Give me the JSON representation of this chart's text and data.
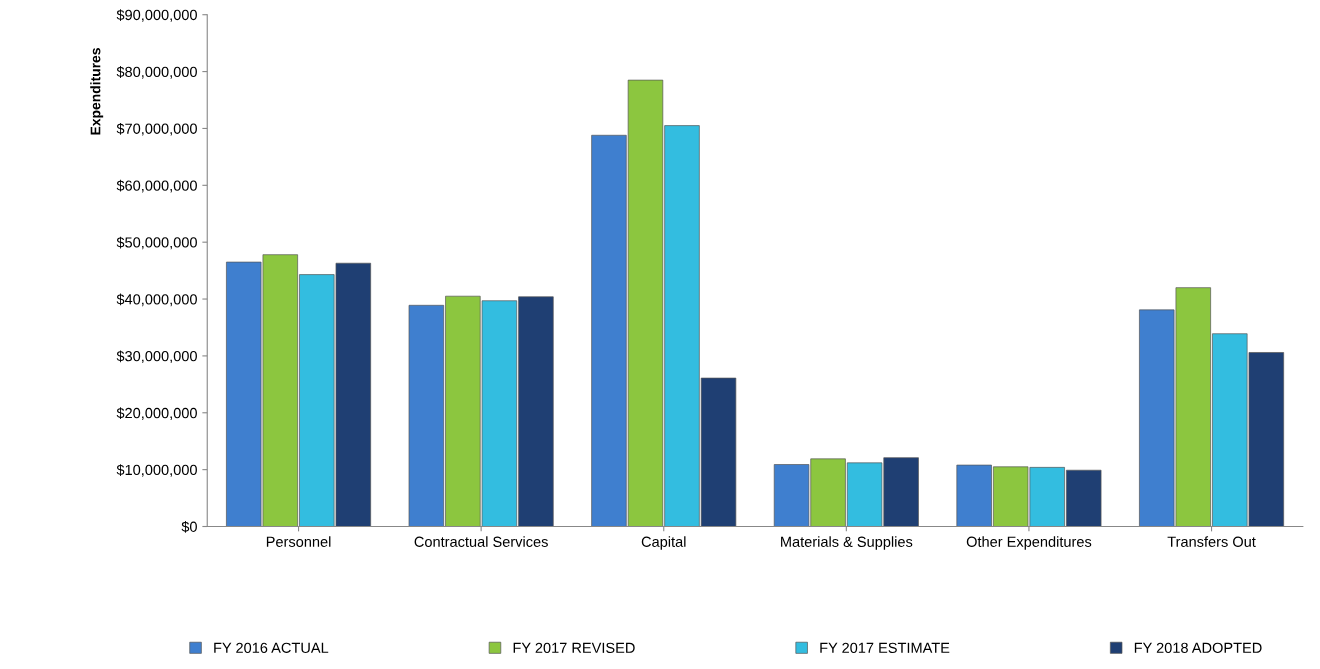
{
  "chart_data": {
    "type": "bar",
    "ylabel": "Expenditures",
    "categories": [
      "Personnel",
      "Contractual Services",
      "Capital",
      "Materials & Supplies",
      "Other Expenditures",
      "Transfers Out"
    ],
    "series": [
      {
        "name": "FY 2016 ACTUAL",
        "color": "#3f7fcf",
        "values": [
          46500000,
          38900000,
          68800000,
          10900000,
          10800000,
          38100000
        ]
      },
      {
        "name": "FY 2017 REVISED",
        "color": "#8cc63f",
        "values": [
          47800000,
          40500000,
          78500000,
          11900000,
          10500000,
          42000000
        ]
      },
      {
        "name": "FY 2017 ESTIMATE",
        "color": "#33bde0",
        "values": [
          44300000,
          39700000,
          70500000,
          11200000,
          10400000,
          33900000
        ]
      },
      {
        "name": "FY 2018 ADOPTED",
        "color": "#1f3f73",
        "values": [
          46300000,
          40400000,
          26100000,
          12100000,
          9900000,
          30600000
        ]
      }
    ],
    "ylim": [
      0,
      90000000
    ],
    "yticks": [
      {
        "value": 0,
        "label": "$0"
      },
      {
        "value": 10000000,
        "label": "$10,000,000"
      },
      {
        "value": 20000000,
        "label": "$20,000,000"
      },
      {
        "value": 30000000,
        "label": "$30,000,000"
      },
      {
        "value": 40000000,
        "label": "$40,000,000"
      },
      {
        "value": 50000000,
        "label": "$50,000,000"
      },
      {
        "value": 60000000,
        "label": "$60,000,000"
      },
      {
        "value": 70000000,
        "label": "$70,000,000"
      },
      {
        "value": 80000000,
        "label": "$80,000,000"
      },
      {
        "value": 90000000,
        "label": "$90,000,000"
      }
    ],
    "grid": false,
    "legend": "bottom"
  }
}
